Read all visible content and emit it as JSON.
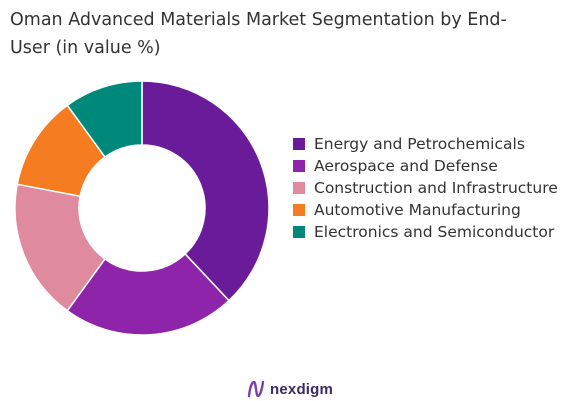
{
  "chart_data": {
    "type": "pie",
    "title": "Oman Advanced Materials Market Segmentation by End-\nUser (in value %)",
    "categories": [
      "Energy and Petrochemicals",
      "Aerospace and Defense",
      "Construction and Infrastructure",
      "Automotive Manufacturing",
      "Electronics and Semiconductor"
    ],
    "values": [
      38,
      22,
      18,
      12,
      10
    ],
    "colors": [
      "#6a1b9a",
      "#8e24aa",
      "#e08aa0",
      "#f57c20",
      "#00897b"
    ],
    "legend_position": "right",
    "donut": true
  },
  "logo": {
    "text": "nexdigm"
  }
}
